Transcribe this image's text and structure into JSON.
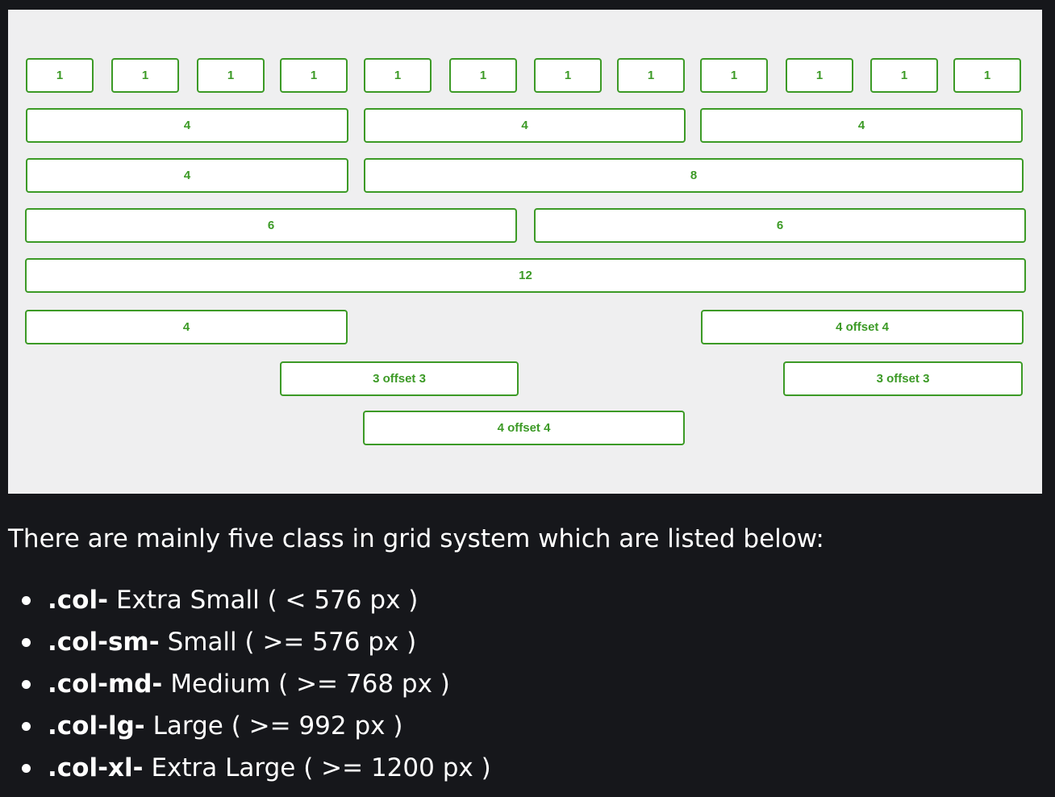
{
  "grid_demo": {
    "colors": {
      "border": "#3c9a26",
      "text": "#3c9a26",
      "background": "#ffffff",
      "frame": "#efeff0"
    },
    "rows": [
      [
        "1",
        "1",
        "1",
        "1",
        "1",
        "1",
        "1",
        "1",
        "1",
        "1",
        "1",
        "1"
      ],
      [
        "4",
        "4",
        "4"
      ],
      [
        "4",
        "8"
      ],
      [
        "6",
        "6"
      ],
      [
        "12"
      ],
      [
        "4",
        "4 offset 4"
      ],
      [
        "3 offset 3",
        "3 offset 3"
      ],
      [
        "4 offset 4"
      ]
    ]
  },
  "content": {
    "intro": "There are mainly five class in grid system which are listed below:",
    "classes": [
      {
        "name": ".col-",
        "description": "Extra Small ( < 576 px )"
      },
      {
        "name": ".col-sm-",
        "description": "Small ( >= 576 px )"
      },
      {
        "name": ".col-md-",
        "description": "Medium ( >= 768 px )"
      },
      {
        "name": ".col-lg-",
        "description": "Large ( >= 992 px )"
      },
      {
        "name": ".col-xl-",
        "description": "Extra Large ( >= 1200 px )"
      }
    ]
  }
}
